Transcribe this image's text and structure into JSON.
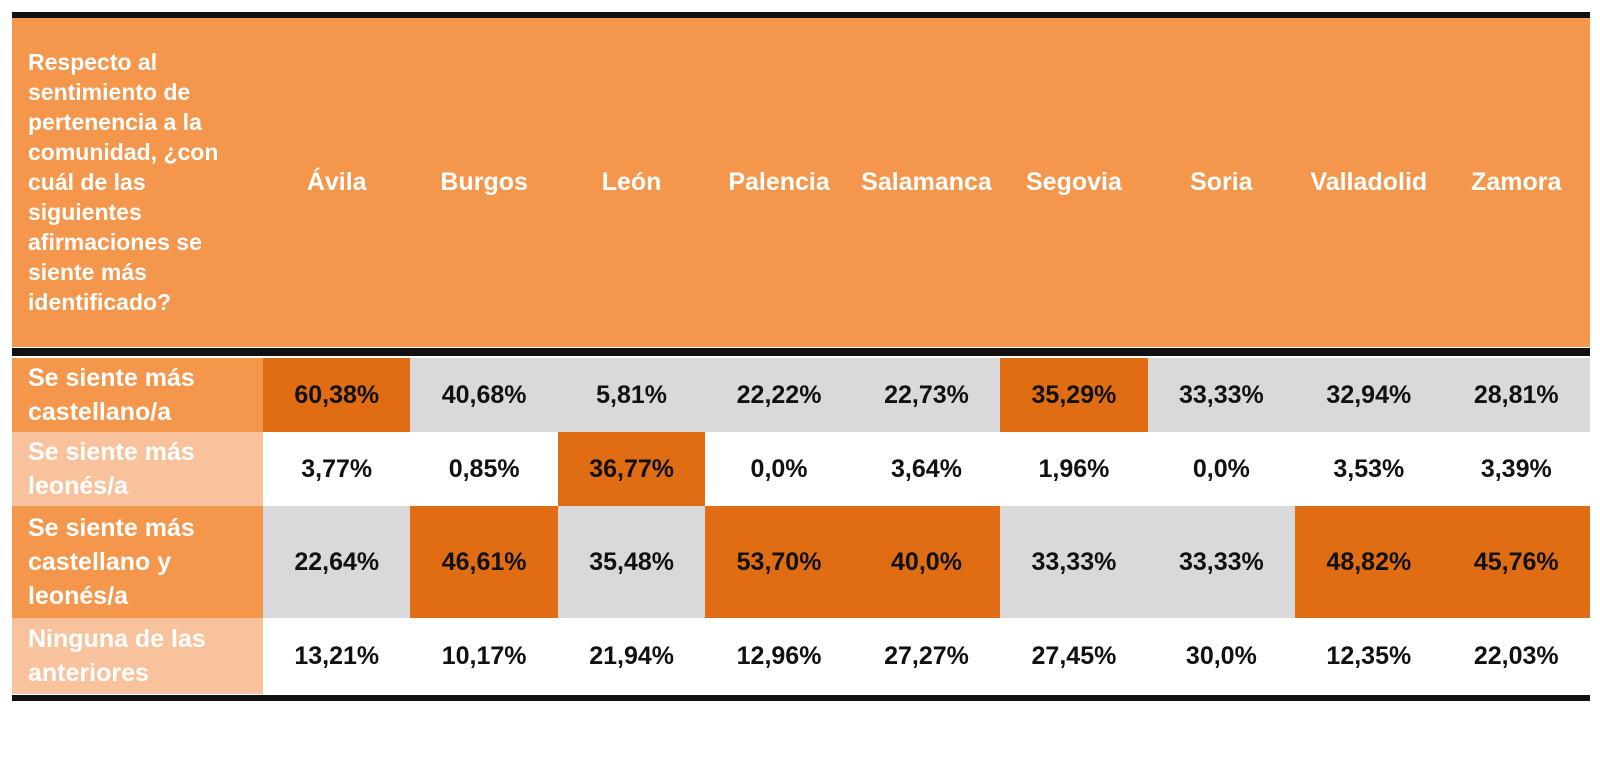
{
  "colors": {
    "header_bg": "#f4964b",
    "row_label_dark": "#f4964b",
    "row_label_light": "#f8c29c",
    "highlight": "#e06d14",
    "gray": "#d9d9d9",
    "white": "#ffffff"
  },
  "chart_data": {
    "type": "table",
    "question": "Respecto al sentimiento de pertenencia a la comunidad, ¿con cuál de las siguientes afirmaciones se siente más identificado?",
    "columns": [
      "Ávila",
      "Burgos",
      "León",
      "Palencia",
      "Salamanca",
      "Segovia",
      "Soria",
      "Valladolid",
      "Zamora"
    ],
    "rows": [
      {
        "label": "Se siente más castellano/a",
        "label_style": "dark",
        "band": "gray",
        "values": [
          "60,38%",
          "40,68%",
          "5,81%",
          "22,22%",
          "22,73%",
          "35,29%",
          "33,33%",
          "32,94%",
          "28,81%"
        ],
        "highlighted": [
          0,
          5
        ]
      },
      {
        "label": "Se siente más leonés/a",
        "label_style": "light",
        "band": "white",
        "values": [
          "3,77%",
          "0,85%",
          "36,77%",
          "0,0%",
          "3,64%",
          "1,96%",
          "0,0%",
          "3,53%",
          "3,39%"
        ],
        "highlighted": [
          2
        ]
      },
      {
        "label": "Se siente más castellano y leonés/a",
        "label_style": "dark",
        "band": "gray",
        "values": [
          "22,64%",
          "46,61%",
          "35,48%",
          "53,70%",
          "40,0%",
          "33,33%",
          "33,33%",
          "48,82%",
          "45,76%"
        ],
        "highlighted": [
          1,
          3,
          4,
          7,
          8
        ]
      },
      {
        "label": "Ninguna de las anteriores",
        "label_style": "light",
        "band": "white",
        "values": [
          "13,21%",
          "10,17%",
          "21,94%",
          "12,96%",
          "27,27%",
          "27,45%",
          "30,0%",
          "12,35%",
          "22,03%"
        ],
        "highlighted": []
      }
    ]
  }
}
